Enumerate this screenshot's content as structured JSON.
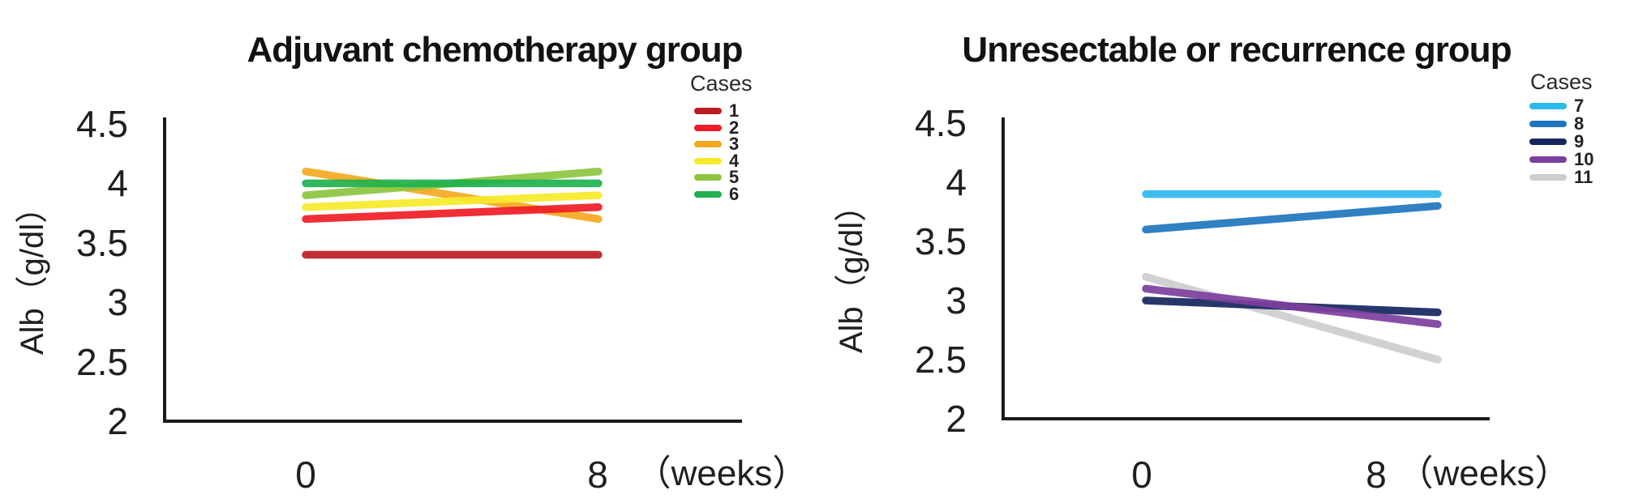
{
  "figure": {
    "background": "#ffffff",
    "axis_color": "#1a1a1a"
  },
  "chart_data": [
    {
      "type": "line",
      "title": "Adjuvant chemotherapy group",
      "ylabel": "Alb（g/dl）",
      "xlabel": "（weeks）",
      "legend_title": "Cases",
      "legend_position": "right",
      "x": [
        0,
        8
      ],
      "xtick_labels": [
        "0",
        "8"
      ],
      "ytick_labels": [
        "4.5",
        "4",
        "3.5",
        "3",
        "2.5",
        "2"
      ],
      "ylim": [
        2,
        4.5
      ],
      "grid": false,
      "series": [
        {
          "name": "1",
          "color": "#bb1c22",
          "values": [
            3.4,
            3.4
          ]
        },
        {
          "name": "2",
          "color": "#ee1c25",
          "values": [
            3.7,
            3.8
          ]
        },
        {
          "name": "3",
          "color": "#f5a81f",
          "values": [
            4.1,
            3.7
          ]
        },
        {
          "name": "4",
          "color": "#f6e92b",
          "values": [
            3.8,
            3.9
          ]
        },
        {
          "name": "5",
          "color": "#8dc63f",
          "values": [
            3.9,
            4.1
          ]
        },
        {
          "name": "6",
          "color": "#20b14e",
          "values": [
            4.0,
            4.0
          ]
        }
      ]
    },
    {
      "type": "line",
      "title": "Unresectable or recurrence group",
      "ylabel": "Alb（g/dl）",
      "xlabel": "（weeks）",
      "legend_title": "Cases",
      "legend_position": "right",
      "x": [
        0,
        8
      ],
      "xtick_labels": [
        "0",
        "8"
      ],
      "ytick_labels": [
        "4.5",
        "4",
        "3.5",
        "3",
        "2.5",
        "2"
      ],
      "ylim": [
        2,
        4.5
      ],
      "grid": false,
      "series": [
        {
          "name": "7",
          "color": "#2cb9ee",
          "values": [
            3.9,
            3.9
          ]
        },
        {
          "name": "8",
          "color": "#1e75bd",
          "values": [
            3.6,
            3.8
          ]
        },
        {
          "name": "9",
          "color": "#16265e",
          "values": [
            3.0,
            2.9
          ]
        },
        {
          "name": "10",
          "color": "#7d3f9d",
          "values": [
            3.1,
            2.8
          ]
        },
        {
          "name": "11",
          "color": "#cdcdcd",
          "values": [
            3.2,
            2.5
          ]
        }
      ]
    }
  ]
}
